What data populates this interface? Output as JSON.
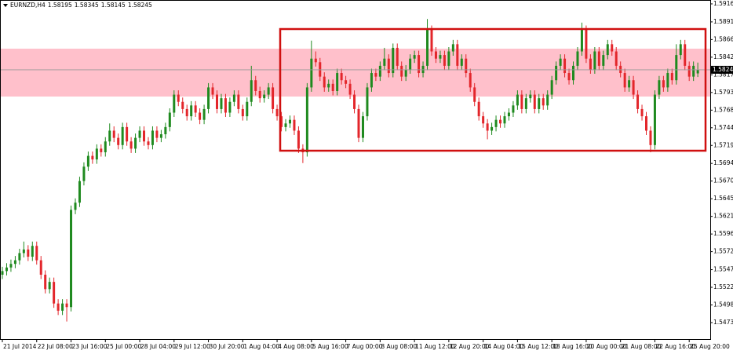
{
  "chart_data": {
    "type": "candlestick",
    "symbol": "EURNZD,H4",
    "up_color": "#1f8a1f",
    "down_color": "#e3262b",
    "ylim": [
      1.54506,
      1.59214
    ],
    "yticks": [
      {
        "value": 1.5916,
        "label": "1.59160"
      },
      {
        "value": 1.5891,
        "label": "1.58910"
      },
      1.58665,
      {
        "value": 1.5842,
        "label": "1.58420"
      },
      1.58175,
      {
        "value": 1.5793,
        "label": "1.57930"
      },
      1.57685,
      {
        "value": 1.5744,
        "label": "1.57440"
      },
      1.57195,
      1.56945,
      {
        "value": 1.567,
        "label": "1.56700"
      },
      1.56455,
      {
        "value": 1.5621,
        "label": "1.56210"
      },
      1.55965,
      {
        "value": 1.5572,
        "label": "1.55720"
      },
      {
        "value": 1.5547,
        "label": "1.55470"
      },
      1.55225,
      {
        "value": 1.5498,
        "label": "1.54980"
      },
      1.54735
    ],
    "categories": [
      "21 Jul 2014",
      null,
      null,
      null,
      null,
      null,
      null,
      null,
      "22 Jul 08:00",
      null,
      null,
      null,
      null,
      null,
      null,
      null,
      "23 Jul 16:00",
      null,
      null,
      null,
      null,
      null,
      null,
      null,
      "25 Jul 00:00",
      null,
      null,
      null,
      null,
      null,
      null,
      null,
      "28 Jul 04:00",
      null,
      null,
      null,
      null,
      null,
      null,
      null,
      "29 Jul 12:00",
      null,
      null,
      null,
      null,
      null,
      null,
      null,
      "30 Jul 20:00",
      null,
      null,
      null,
      null,
      null,
      null,
      null,
      "1 Aug 04:00",
      null,
      null,
      null,
      null,
      null,
      null,
      null,
      "4 Aug 08:00",
      null,
      null,
      null,
      null,
      null,
      null,
      null,
      "5 Aug 16:00",
      null,
      null,
      null,
      null,
      null,
      null,
      null,
      "7 Aug 00:00",
      null,
      null,
      null,
      null,
      null,
      null,
      null,
      "8 Aug 08:00",
      null,
      null,
      null,
      null,
      null,
      null,
      null,
      "11 Aug 12:00",
      null,
      null,
      null,
      null,
      null,
      null,
      null,
      "12 Aug 20:00",
      null,
      null,
      null,
      null,
      null,
      null,
      null,
      "14 Aug 04:00",
      null,
      null,
      null,
      null,
      null,
      null,
      null,
      "15 Aug 12:00",
      null,
      null,
      null,
      null,
      null,
      null,
      null,
      "18 Aug 16:00",
      null,
      null,
      null,
      null,
      null,
      null,
      null,
      "20 Aug 00:00",
      null,
      null,
      null,
      null,
      null,
      null,
      null,
      "21 Aug 08:00",
      null,
      null,
      null,
      null,
      null,
      null,
      null,
      "22 Aug 16:00",
      null,
      null,
      null,
      null,
      null,
      null,
      null,
      "25 Aug 20:00",
      null,
      null
    ],
    "open": [
      1.554,
      1.5545,
      1.555,
      1.5555,
      1.556,
      1.557,
      1.5575,
      1.5565,
      1.558,
      1.556,
      1.554,
      1.552,
      1.553,
      1.55,
      1.549,
      1.55,
      1.5495,
      1.563,
      1.564,
      1.567,
      1.569,
      1.5705,
      1.57,
      1.5715,
      1.571,
      1.5725,
      1.574,
      1.573,
      1.572,
      1.5745,
      1.5725,
      1.5715,
      1.573,
      1.574,
      1.5725,
      1.572,
      1.574,
      1.573,
      1.5735,
      1.5745,
      1.5765,
      1.579,
      1.578,
      1.577,
      1.576,
      1.5775,
      1.5765,
      1.5755,
      1.577,
      1.58,
      1.579,
      1.577,
      1.5785,
      1.5765,
      1.578,
      1.579,
      1.577,
      1.576,
      1.578,
      1.581,
      1.5795,
      1.5785,
      1.579,
      1.58,
      1.577,
      1.576,
      1.5745,
      1.575,
      1.5755,
      1.574,
      1.5715,
      1.571,
      1.58,
      1.584,
      1.5835,
      1.5815,
      1.58,
      1.5805,
      1.5795,
      1.582,
      1.581,
      1.5805,
      1.579,
      1.577,
      1.573,
      1.576,
      1.58,
      1.582,
      1.5815,
      1.583,
      1.584,
      1.582,
      1.5855,
      1.583,
      1.5815,
      1.5825,
      1.584,
      1.5845,
      1.582,
      1.583,
      1.588,
      1.585,
      1.584,
      1.5845,
      1.583,
      1.585,
      1.586,
      1.583,
      1.584,
      1.582,
      1.58,
      1.578,
      1.576,
      1.575,
      1.574,
      1.5745,
      1.5755,
      1.575,
      1.576,
      1.5765,
      1.5775,
      1.579,
      1.577,
      1.5785,
      1.579,
      1.577,
      1.5785,
      1.5775,
      1.579,
      1.581,
      1.583,
      1.584,
      1.582,
      1.581,
      1.583,
      1.585,
      1.588,
      1.584,
      1.5825,
      1.585,
      1.583,
      1.5845,
      1.586,
      1.585,
      1.583,
      1.582,
      1.58,
      1.581,
      1.579,
      1.577,
      1.576,
      1.574,
      1.572,
      1.579,
      1.581,
      1.58,
      1.582,
      1.581,
      1.5845,
      1.586,
      1.583,
      1.5815,
      1.58195
    ],
    "high": [
      1.5551,
      1.5556,
      1.5561,
      1.5566,
      1.5576,
      1.5586,
      1.5581,
      1.5586,
      1.5586,
      1.5566,
      1.5546,
      1.5536,
      1.5536,
      1.5506,
      1.5506,
      1.5506,
      1.5636,
      1.5646,
      1.5676,
      1.5696,
      1.5711,
      1.5711,
      1.5721,
      1.5721,
      1.5731,
      1.575,
      1.5746,
      1.5736,
      1.5751,
      1.5751,
      1.5731,
      1.5736,
      1.5746,
      1.5746,
      1.5731,
      1.5746,
      1.5746,
      1.5741,
      1.5751,
      1.5771,
      1.5796,
      1.5796,
      1.5786,
      1.5776,
      1.5781,
      1.5781,
      1.5771,
      1.5776,
      1.5806,
      1.5806,
      1.5796,
      1.5791,
      1.5791,
      1.5786,
      1.5796,
      1.5796,
      1.5776,
      1.5786,
      1.583,
      1.5816,
      1.5801,
      1.5796,
      1.5806,
      1.5806,
      1.5776,
      1.5766,
      1.5756,
      1.5761,
      1.5761,
      1.5746,
      1.5721,
      1.5806,
      1.5865,
      1.585,
      1.5841,
      1.5821,
      1.5811,
      1.5811,
      1.5826,
      1.5826,
      1.5816,
      1.5811,
      1.5796,
      1.5776,
      1.5766,
      1.5806,
      1.5826,
      1.5826,
      1.5836,
      1.5855,
      1.5846,
      1.5861,
      1.5861,
      1.5836,
      1.5831,
      1.5846,
      1.5851,
      1.5851,
      1.5836,
      1.5895,
      1.5886,
      1.5856,
      1.5851,
      1.5851,
      1.5856,
      1.5866,
      1.5866,
      1.5846,
      1.5846,
      1.5826,
      1.5806,
      1.5786,
      1.5766,
      1.5756,
      1.5751,
      1.5761,
      1.5761,
      1.5766,
      1.5771,
      1.5781,
      1.5796,
      1.5796,
      1.5791,
      1.5796,
      1.5796,
      1.5791,
      1.5791,
      1.5796,
      1.5816,
      1.5836,
      1.5846,
      1.5846,
      1.5826,
      1.5836,
      1.5856,
      1.589,
      1.5886,
      1.5846,
      1.5856,
      1.5856,
      1.5851,
      1.5866,
      1.5866,
      1.5856,
      1.5836,
      1.5826,
      1.5816,
      1.5816,
      1.5796,
      1.5776,
      1.5766,
      1.5746,
      1.5796,
      1.5816,
      1.5816,
      1.5826,
      1.5826,
      1.586,
      1.5866,
      1.5866,
      1.5836,
      1.5836,
      1.58345
    ],
    "low": [
      1.5534,
      1.5539,
      1.5544,
      1.5549,
      1.5554,
      1.5564,
      1.5559,
      1.5559,
      1.5554,
      1.5534,
      1.5514,
      1.5514,
      1.5494,
      1.5484,
      1.5484,
      1.5475,
      1.5489,
      1.5624,
      1.5634,
      1.5664,
      1.5684,
      1.5694,
      1.5694,
      1.5704,
      1.5704,
      1.5719,
      1.5724,
      1.5714,
      1.5714,
      1.5719,
      1.5709,
      1.5709,
      1.5724,
      1.5719,
      1.5714,
      1.5714,
      1.5724,
      1.5724,
      1.5729,
      1.5739,
      1.5759,
      1.5774,
      1.5764,
      1.5754,
      1.5754,
      1.5759,
      1.5749,
      1.5749,
      1.5764,
      1.5784,
      1.5764,
      1.5764,
      1.5759,
      1.5759,
      1.5774,
      1.5764,
      1.5754,
      1.5754,
      1.5774,
      1.5789,
      1.5779,
      1.5779,
      1.5784,
      1.5764,
      1.5754,
      1.5739,
      1.5739,
      1.5744,
      1.5734,
      1.5709,
      1.5695,
      1.5704,
      1.5794,
      1.5829,
      1.5809,
      1.5794,
      1.5794,
      1.5789,
      1.5789,
      1.5804,
      1.5799,
      1.5784,
      1.5764,
      1.5724,
      1.5724,
      1.5754,
      1.5794,
      1.5809,
      1.5809,
      1.5824,
      1.5814,
      1.5814,
      1.5824,
      1.5809,
      1.5809,
      1.5819,
      1.5834,
      1.5814,
      1.5814,
      1.5824,
      1.5844,
      1.5834,
      1.5834,
      1.5824,
      1.5824,
      1.5844,
      1.5824,
      1.5824,
      1.5814,
      1.5794,
      1.5774,
      1.5754,
      1.5744,
      1.5728,
      1.5734,
      1.5739,
      1.5744,
      1.5744,
      1.5754,
      1.5759,
      1.5769,
      1.5764,
      1.5764,
      1.5779,
      1.5764,
      1.5764,
      1.5769,
      1.5769,
      1.5784,
      1.5804,
      1.5824,
      1.5814,
      1.5804,
      1.5804,
      1.5824,
      1.5844,
      1.5834,
      1.5819,
      1.5819,
      1.5824,
      1.5824,
      1.5839,
      1.5844,
      1.5824,
      1.5814,
      1.5794,
      1.5794,
      1.5784,
      1.5764,
      1.5754,
      1.5734,
      1.571,
      1.5714,
      1.5784,
      1.5794,
      1.5794,
      1.5804,
      1.5804,
      1.5839,
      1.5824,
      1.5809,
      1.5809,
      1.58145
    ],
    "close": [
      1.5545,
      1.555,
      1.5555,
      1.556,
      1.557,
      1.5575,
      1.5565,
      1.558,
      1.556,
      1.554,
      1.552,
      1.553,
      1.55,
      1.549,
      1.55,
      1.5495,
      1.563,
      1.564,
      1.567,
      1.569,
      1.5705,
      1.57,
      1.5715,
      1.571,
      1.5725,
      1.574,
      1.573,
      1.572,
      1.5745,
      1.5725,
      1.5715,
      1.573,
      1.574,
      1.5725,
      1.572,
      1.574,
      1.573,
      1.5735,
      1.5745,
      1.5765,
      1.579,
      1.578,
      1.577,
      1.576,
      1.5775,
      1.5765,
      1.5755,
      1.577,
      1.58,
      1.579,
      1.577,
      1.5785,
      1.5765,
      1.578,
      1.579,
      1.577,
      1.576,
      1.578,
      1.581,
      1.5795,
      1.5785,
      1.579,
      1.58,
      1.577,
      1.576,
      1.5745,
      1.575,
      1.5755,
      1.574,
      1.5715,
      1.571,
      1.58,
      1.584,
      1.5835,
      1.5815,
      1.58,
      1.5805,
      1.5795,
      1.582,
      1.581,
      1.5805,
      1.579,
      1.577,
      1.573,
      1.576,
      1.58,
      1.582,
      1.5815,
      1.583,
      1.584,
      1.582,
      1.5855,
      1.583,
      1.5815,
      1.5825,
      1.584,
      1.5845,
      1.582,
      1.583,
      1.588,
      1.585,
      1.584,
      1.5845,
      1.583,
      1.585,
      1.586,
      1.583,
      1.584,
      1.582,
      1.58,
      1.578,
      1.576,
      1.575,
      1.574,
      1.5745,
      1.5755,
      1.575,
      1.576,
      1.5765,
      1.5775,
      1.579,
      1.577,
      1.5785,
      1.579,
      1.577,
      1.5785,
      1.5775,
      1.579,
      1.581,
      1.583,
      1.584,
      1.582,
      1.581,
      1.583,
      1.585,
      1.588,
      1.584,
      1.5825,
      1.585,
      1.583,
      1.5845,
      1.586,
      1.585,
      1.583,
      1.582,
      1.58,
      1.581,
      1.579,
      1.577,
      1.576,
      1.574,
      1.572,
      1.579,
      1.581,
      1.58,
      1.582,
      1.581,
      1.5845,
      1.586,
      1.583,
      1.5815,
      1.583,
      1.58245
    ]
  }
}
